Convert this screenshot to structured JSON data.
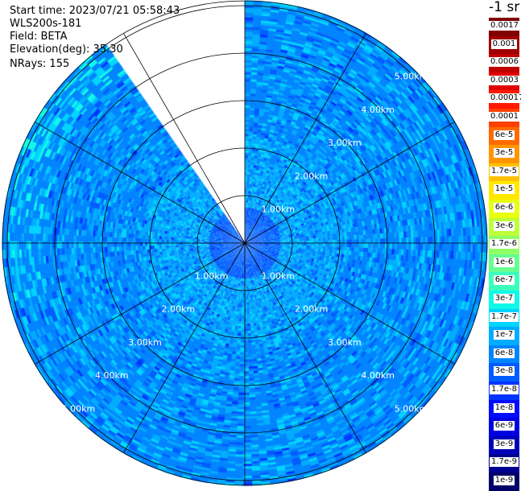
{
  "info": {
    "start_time": "Start time: 2023/07/21 05:58:43",
    "instrument": "WLS200s-181",
    "field": "Field: BETA",
    "elevation": "Elevation(deg): 35.30",
    "nrays": "NRays: 155"
  },
  "legend": {
    "title": "-1 sr",
    "bands": [
      {
        "label": "0.0017",
        "color": "#800000"
      },
      {
        "label": "0.001",
        "color": "#a00000"
      },
      {
        "label": "0.0006",
        "color": "#c00000"
      },
      {
        "label": "0.0003",
        "color": "#e00000"
      },
      {
        "label": "0.00017",
        "color": "#ff1a00"
      },
      {
        "label": "0.0001",
        "color": "#ff4000"
      },
      {
        "label": "6e-5",
        "color": "#ff6a00"
      },
      {
        "label": "3e-5",
        "color": "#ff9600"
      },
      {
        "label": "1.7e-5",
        "color": "#ffc000"
      },
      {
        "label": "1e-5",
        "color": "#ffe800"
      },
      {
        "label": "6e-6",
        "color": "#e8ff10"
      },
      {
        "label": "3e-6",
        "color": "#bcff3a"
      },
      {
        "label": "1.7e-6",
        "color": "#90ff66"
      },
      {
        "label": "1e-6",
        "color": "#66ff90"
      },
      {
        "label": "6e-7",
        "color": "#3affbc"
      },
      {
        "label": "3e-7",
        "color": "#10f8e8"
      },
      {
        "label": "1.7e-7",
        "color": "#00d4ff"
      },
      {
        "label": "1e-7",
        "color": "#00acff"
      },
      {
        "label": "6e-8",
        "color": "#0084ff"
      },
      {
        "label": "3e-8",
        "color": "#005cff"
      },
      {
        "label": "1.7e-8",
        "color": "#0034ff"
      },
      {
        "label": "1e-8",
        "color": "#000cff"
      },
      {
        "label": "6e-9",
        "color": "#0000e0"
      },
      {
        "label": "3e-9",
        "color": "#0000b8"
      },
      {
        "label": "1.7e-9",
        "color": "#000090"
      },
      {
        "label": "1e-9",
        "color": "#000068"
      }
    ]
  },
  "chart_data": {
    "type": "heatmap",
    "projection": "polar-ppi",
    "range_rings_km": [
      1,
      2,
      3,
      4,
      5
    ],
    "ring_labels": [
      "1.00km",
      "2.00km",
      "3.00km",
      "4.00km",
      "5.00km"
    ],
    "max_range_km": 5.1,
    "spoke_interval_deg": 30,
    "data_sector_deg": [
      0,
      325
    ],
    "missing_sector_deg": [
      325,
      360
    ],
    "typical_values": {
      "near_range": "3e-8",
      "mid_range": "1e-7",
      "far_range": "6e-8",
      "far_range_highs": "3e-7"
    },
    "colors": {
      "background": "#ffffff",
      "grid": "#000000",
      "ring_label": "#ffffff"
    }
  }
}
